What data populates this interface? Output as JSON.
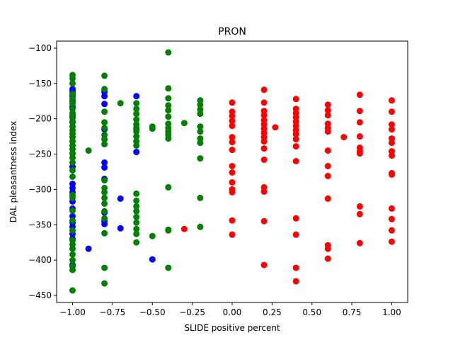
{
  "chart_data": {
    "type": "scatter",
    "title": "PRON",
    "xlabel": "SLIDE positive percent",
    "ylabel": "DAL pleasantness index",
    "xlim": [
      -1.1,
      1.1
    ],
    "ylim": [
      -460,
      -90
    ],
    "x_ticks": [
      -1.0,
      -0.75,
      -0.5,
      -0.25,
      0.0,
      0.25,
      0.5,
      0.75,
      1.0
    ],
    "x_tick_labels": [
      "−1.00",
      "−0.75",
      "−0.50",
      "−0.25",
      "0.00",
      "0.25",
      "0.50",
      "0.75",
      "1.00"
    ],
    "y_ticks": [
      -450,
      -400,
      -350,
      -300,
      -250,
      -200,
      -150,
      -100
    ],
    "y_tick_labels": [
      "−450",
      "−400",
      "−350",
      "−300",
      "−250",
      "−200",
      "−150",
      "−100"
    ],
    "grid": false,
    "series": [
      {
        "color": "#0000ff",
        "points": [
          [
            -1.0,
            -158
          ],
          [
            -1.0,
            -162
          ],
          [
            -1.0,
            -168
          ],
          [
            -1.0,
            -175
          ],
          [
            -1.0,
            -183
          ],
          [
            -1.0,
            -196
          ],
          [
            -1.0,
            -205
          ],
          [
            -1.0,
            -268
          ],
          [
            -1.0,
            -292
          ],
          [
            -1.0,
            -298
          ],
          [
            -1.0,
            -304
          ],
          [
            -1.0,
            -317
          ],
          [
            -1.0,
            -327
          ],
          [
            -1.0,
            -338
          ],
          [
            -1.0,
            -347
          ],
          [
            -1.0,
            -353
          ],
          [
            -1.0,
            -363
          ],
          [
            -1.0,
            -370
          ],
          [
            -1.0,
            -407
          ],
          [
            -0.9,
            -384
          ],
          [
            -0.8,
            -162
          ],
          [
            -0.8,
            -168
          ],
          [
            -0.8,
            -179
          ],
          [
            -0.8,
            -215
          ],
          [
            -0.8,
            -262
          ],
          [
            -0.8,
            -269
          ],
          [
            -0.8,
            -285
          ],
          [
            -0.8,
            -333
          ],
          [
            -0.8,
            -345
          ],
          [
            -0.8,
            -349
          ],
          [
            -0.7,
            -313
          ],
          [
            -0.7,
            -355
          ],
          [
            -0.6,
            -168
          ],
          [
            -0.6,
            -215
          ],
          [
            -0.6,
            -247
          ],
          [
            -0.5,
            -399
          ]
        ]
      },
      {
        "color": "#008000",
        "points": [
          [
            -1.0,
            -138
          ],
          [
            -1.0,
            -143
          ],
          [
            -1.0,
            -150
          ],
          [
            -1.0,
            -165
          ],
          [
            -1.0,
            -172
          ],
          [
            -1.0,
            -178
          ],
          [
            -1.0,
            -186
          ],
          [
            -1.0,
            -192
          ],
          [
            -1.0,
            -199
          ],
          [
            -1.0,
            -204
          ],
          [
            -1.0,
            -211
          ],
          [
            -1.0,
            -216
          ],
          [
            -1.0,
            -221
          ],
          [
            -1.0,
            -226
          ],
          [
            -1.0,
            -232
          ],
          [
            -1.0,
            -238
          ],
          [
            -1.0,
            -243
          ],
          [
            -1.0,
            -249
          ],
          [
            -1.0,
            -255
          ],
          [
            -1.0,
            -262
          ],
          [
            -1.0,
            -273
          ],
          [
            -1.0,
            -282
          ],
          [
            -1.0,
            -308
          ],
          [
            -1.0,
            -312
          ],
          [
            -1.0,
            -330
          ],
          [
            -1.0,
            -344
          ],
          [
            -1.0,
            -358
          ],
          [
            -1.0,
            -372
          ],
          [
            -1.0,
            -378
          ],
          [
            -1.0,
            -384
          ],
          [
            -1.0,
            -392
          ],
          [
            -1.0,
            -400
          ],
          [
            -1.0,
            -409
          ],
          [
            -1.0,
            -414
          ],
          [
            -1.0,
            -443
          ],
          [
            -0.9,
            -245
          ],
          [
            -0.8,
            -139
          ],
          [
            -0.8,
            -158
          ],
          [
            -0.8,
            -190
          ],
          [
            -0.8,
            -205
          ],
          [
            -0.8,
            -213
          ],
          [
            -0.8,
            -223
          ],
          [
            -0.8,
            -229
          ],
          [
            -0.8,
            -236
          ],
          [
            -0.8,
            -287
          ],
          [
            -0.8,
            -298
          ],
          [
            -0.8,
            -304
          ],
          [
            -0.8,
            -312
          ],
          [
            -0.8,
            -320
          ],
          [
            -0.8,
            -331
          ],
          [
            -0.8,
            -341
          ],
          [
            -0.8,
            -362
          ],
          [
            -0.8,
            -411
          ],
          [
            -0.8,
            -433
          ],
          [
            -0.7,
            -178
          ],
          [
            -0.6,
            -178
          ],
          [
            -0.6,
            -186
          ],
          [
            -0.6,
            -193
          ],
          [
            -0.6,
            -201
          ],
          [
            -0.6,
            -208
          ],
          [
            -0.6,
            -213
          ],
          [
            -0.6,
            -218
          ],
          [
            -0.6,
            -225
          ],
          [
            -0.6,
            -232
          ],
          [
            -0.6,
            -238
          ],
          [
            -0.6,
            -306
          ],
          [
            -0.6,
            -316
          ],
          [
            -0.6,
            -324
          ],
          [
            -0.6,
            -331
          ],
          [
            -0.6,
            -339
          ],
          [
            -0.6,
            -347
          ],
          [
            -0.6,
            -356
          ],
          [
            -0.6,
            -363
          ],
          [
            -0.6,
            -375
          ],
          [
            -0.5,
            -211
          ],
          [
            -0.5,
            -214
          ],
          [
            -0.5,
            -366
          ],
          [
            -0.4,
            -106
          ],
          [
            -0.4,
            -157
          ],
          [
            -0.4,
            -171
          ],
          [
            -0.4,
            -181
          ],
          [
            -0.4,
            -188
          ],
          [
            -0.4,
            -197
          ],
          [
            -0.4,
            -207
          ],
          [
            -0.4,
            -213
          ],
          [
            -0.4,
            -218
          ],
          [
            -0.4,
            -223
          ],
          [
            -0.4,
            -228
          ],
          [
            -0.4,
            -297
          ],
          [
            -0.4,
            -357
          ],
          [
            -0.4,
            -358
          ],
          [
            -0.4,
            -411
          ],
          [
            -0.3,
            -206
          ],
          [
            -0.2,
            -174
          ],
          [
            -0.2,
            -180
          ],
          [
            -0.2,
            -187
          ],
          [
            -0.2,
            -193
          ],
          [
            -0.2,
            -211
          ],
          [
            -0.2,
            -218
          ],
          [
            -0.2,
            -228
          ],
          [
            -0.2,
            -234
          ],
          [
            -0.2,
            -256
          ],
          [
            -0.2,
            -312
          ],
          [
            -0.2,
            -353
          ]
        ]
      },
      {
        "color": "#ff0000",
        "points": [
          [
            -0.3,
            -356
          ],
          [
            0.0,
            -177
          ],
          [
            0.0,
            -190
          ],
          [
            0.0,
            -196
          ],
          [
            0.0,
            -203
          ],
          [
            0.0,
            -210
          ],
          [
            0.0,
            -226
          ],
          [
            0.0,
            -233
          ],
          [
            0.0,
            -244
          ],
          [
            0.0,
            -267
          ],
          [
            0.0,
            -276
          ],
          [
            0.0,
            -290
          ],
          [
            0.0,
            -300
          ],
          [
            0.0,
            -304
          ],
          [
            0.0,
            -344
          ],
          [
            0.0,
            -364
          ],
          [
            0.2,
            -159
          ],
          [
            0.2,
            -177
          ],
          [
            0.2,
            -189
          ],
          [
            0.2,
            -195
          ],
          [
            0.2,
            -202
          ],
          [
            0.2,
            -208
          ],
          [
            0.2,
            -214
          ],
          [
            0.2,
            -220
          ],
          [
            0.2,
            -226
          ],
          [
            0.2,
            -232
          ],
          [
            0.2,
            -242
          ],
          [
            0.2,
            -258
          ],
          [
            0.2,
            -297
          ],
          [
            0.2,
            -303
          ],
          [
            0.2,
            -345
          ],
          [
            0.2,
            -407
          ],
          [
            0.27,
            -212
          ],
          [
            0.4,
            -172
          ],
          [
            0.4,
            -186
          ],
          [
            0.4,
            -192
          ],
          [
            0.4,
            -198
          ],
          [
            0.4,
            -204
          ],
          [
            0.4,
            -210
          ],
          [
            0.4,
            -216
          ],
          [
            0.4,
            -222
          ],
          [
            0.4,
            -229
          ],
          [
            0.4,
            -239
          ],
          [
            0.4,
            -260
          ],
          [
            0.4,
            -341
          ],
          [
            0.4,
            -364
          ],
          [
            0.4,
            -411
          ],
          [
            0.4,
            -430
          ],
          [
            0.6,
            -180
          ],
          [
            0.6,
            -188
          ],
          [
            0.6,
            -195
          ],
          [
            0.6,
            -207
          ],
          [
            0.6,
            -213
          ],
          [
            0.6,
            -218
          ],
          [
            0.6,
            -245
          ],
          [
            0.6,
            -267
          ],
          [
            0.6,
            -281
          ],
          [
            0.6,
            -313
          ],
          [
            0.6,
            -379
          ],
          [
            0.6,
            -384
          ],
          [
            0.6,
            -398
          ],
          [
            0.7,
            -226
          ],
          [
            0.8,
            -166
          ],
          [
            0.8,
            -189
          ],
          [
            0.8,
            -205
          ],
          [
            0.8,
            -225
          ],
          [
            0.8,
            -241
          ],
          [
            0.8,
            -246
          ],
          [
            0.8,
            -249
          ],
          [
            0.8,
            -324
          ],
          [
            0.8,
            -335
          ],
          [
            0.8,
            -376
          ],
          [
            1.0,
            -174
          ],
          [
            1.0,
            -190
          ],
          [
            1.0,
            -208
          ],
          [
            1.0,
            -215
          ],
          [
            1.0,
            -228
          ],
          [
            1.0,
            -234
          ],
          [
            1.0,
            -246
          ],
          [
            1.0,
            -252
          ],
          [
            1.0,
            -277
          ],
          [
            1.0,
            -279
          ],
          [
            1.0,
            -327
          ],
          [
            1.0,
            -342
          ],
          [
            1.0,
            -358
          ],
          [
            1.0,
            -374
          ]
        ]
      }
    ]
  }
}
